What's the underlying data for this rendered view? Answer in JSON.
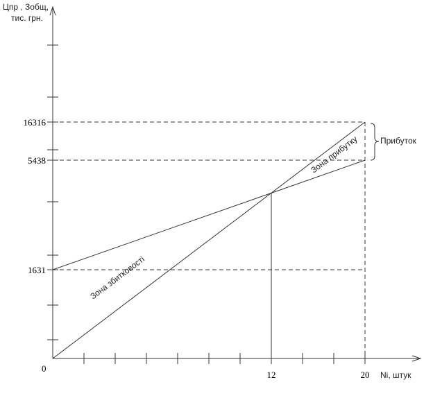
{
  "axes": {
    "y_title_line1": "Цпр , Зобщ,",
    "y_title_line2": "тис. грн.",
    "x_title": "Ni, штук",
    "origin": "0"
  },
  "y_labels": [
    "16316",
    "5438",
    "1631"
  ],
  "x_labels": [
    "12",
    "20"
  ],
  "annotations": {
    "profit": "Прибуток",
    "profit_zone": "Зона прибутку",
    "loss_zone": "Зона збитковості"
  }
}
